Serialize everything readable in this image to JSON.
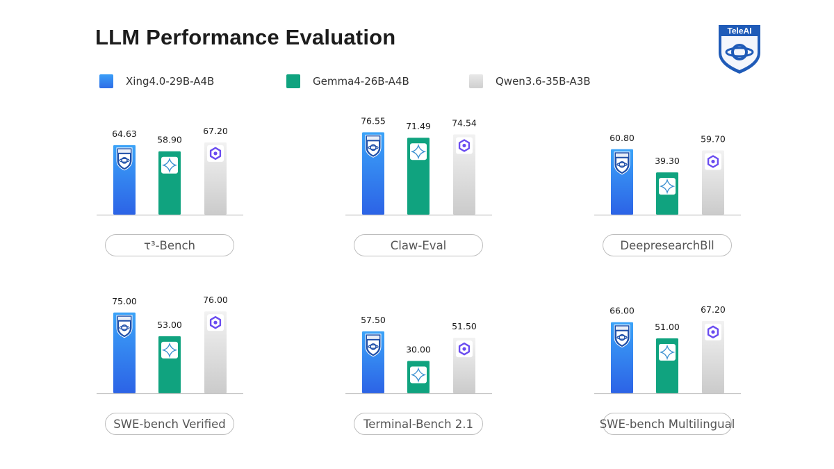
{
  "title": "LLM Performance Evaluation",
  "logo": {
    "text": "TeleAI",
    "icon": "teleai-shield-icon",
    "color": "#1f5bb8"
  },
  "legend": [
    {
      "label": "Xing4.0-29B-A4B",
      "color": "#2f7df6",
      "icon": "teleai-icon"
    },
    {
      "label": "Gemma4-26B-A4B",
      "color": "#10a37f",
      "icon": "gemma-icon"
    },
    {
      "label": "Qwen3.6-35B-A3B",
      "color": "#dcdcdc",
      "icon": "qwen-icon"
    }
  ],
  "chart_data": [
    {
      "type": "bar",
      "benchmark": "τ³-Bench",
      "ylim": [
        0,
        100
      ],
      "series": [
        {
          "name": "Xing4.0-29B-A4B",
          "value": 64.63
        },
        {
          "name": "Gemma4-26B-A4B",
          "value": 58.9
        },
        {
          "name": "Qwen3.6-35B-A3B",
          "value": 67.2
        }
      ],
      "labels": [
        "64.63",
        "58.90",
        "67.20"
      ]
    },
    {
      "type": "bar",
      "benchmark": "Claw-Eval",
      "ylim": [
        0,
        100
      ],
      "series": [
        {
          "name": "Xing4.0-29B-A4B",
          "value": 76.55
        },
        {
          "name": "Gemma4-26B-A4B",
          "value": 71.49
        },
        {
          "name": "Qwen3.6-35B-A3B",
          "value": 74.54
        }
      ],
      "labels": [
        "76.55",
        "71.49",
        "74.54"
      ]
    },
    {
      "type": "bar",
      "benchmark": "DeepresearchBll",
      "ylim": [
        0,
        100
      ],
      "series": [
        {
          "name": "Xing4.0-29B-A4B",
          "value": 60.8
        },
        {
          "name": "Gemma4-26B-A4B",
          "value": 39.3
        },
        {
          "name": "Qwen3.6-35B-A3B",
          "value": 59.7
        }
      ],
      "labels": [
        "60.80",
        "39.30",
        "59.70"
      ]
    },
    {
      "type": "bar",
      "benchmark": "SWE-bench Verified",
      "ylim": [
        0,
        100
      ],
      "series": [
        {
          "name": "Xing4.0-29B-A4B",
          "value": 75.0
        },
        {
          "name": "Gemma4-26B-A4B",
          "value": 53.0
        },
        {
          "name": "Qwen3.6-35B-A3B",
          "value": 76.0
        }
      ],
      "labels": [
        "75.00",
        "53.00",
        "76.00"
      ]
    },
    {
      "type": "bar",
      "benchmark": "Terminal-Bench 2.1",
      "ylim": [
        0,
        100
      ],
      "series": [
        {
          "name": "Xing4.0-29B-A4B",
          "value": 57.5
        },
        {
          "name": "Gemma4-26B-A4B",
          "value": 30.0
        },
        {
          "name": "Qwen3.6-35B-A3B",
          "value": 51.5
        }
      ],
      "labels": [
        "57.50",
        "30.00",
        "51.50"
      ]
    },
    {
      "type": "bar",
      "benchmark": "SWE-bench Multilingual",
      "ylim": [
        0,
        100
      ],
      "series": [
        {
          "name": "Xing4.0-29B-A4B",
          "value": 66.0
        },
        {
          "name": "Gemma4-26B-A4B",
          "value": 51.0
        },
        {
          "name": "Qwen3.6-35B-A3B",
          "value": 67.2
        }
      ],
      "labels": [
        "66.00",
        "51.00",
        "67.20"
      ]
    }
  ]
}
